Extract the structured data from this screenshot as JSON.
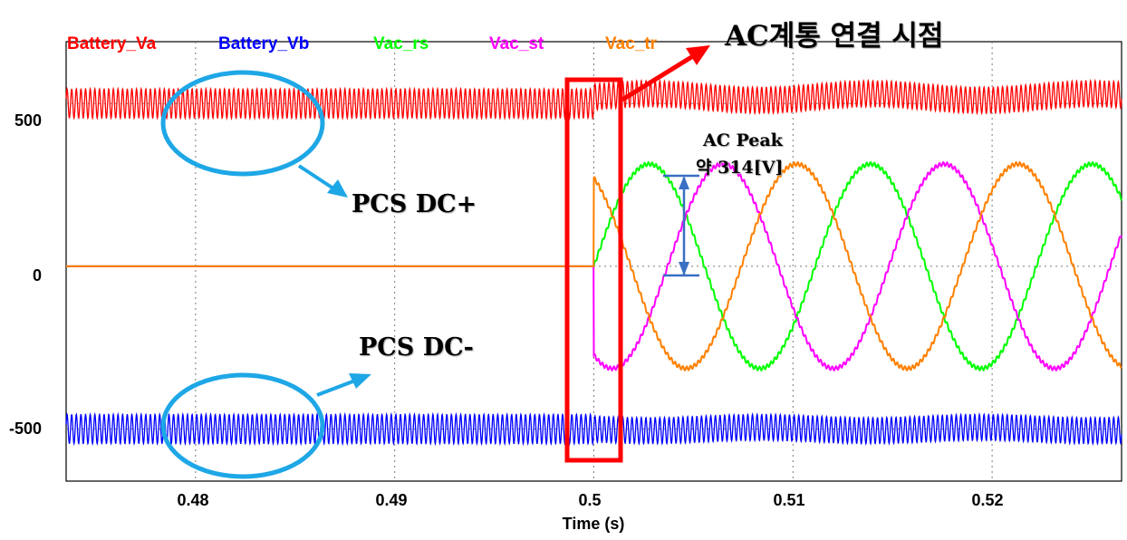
{
  "chart_data": {
    "type": "line",
    "xlabel": "Time (s)",
    "xlim": [
      0.4735,
      0.5265
    ],
    "ylim": [
      -660,
      690
    ],
    "xticks": [
      0.48,
      0.49,
      0.5,
      0.51,
      0.52
    ],
    "xtick_labels": [
      "0.48",
      "0.49",
      "0.5",
      "0.51",
      "0.52"
    ],
    "yticks": [
      500,
      0,
      -500
    ],
    "ytick_labels": [
      "500",
      "0",
      "-500"
    ],
    "grid": true,
    "legend_position": "top",
    "connect_time": 0.5,
    "ac_frequency_hz": 90,
    "ac_peak": 314,
    "series": [
      {
        "name": "Battery_Va",
        "color": "#ff0000",
        "level_before": 500,
        "ripple_before": 45,
        "level_after": 520,
        "ripple_after": 40
      },
      {
        "name": "Battery_Vb",
        "color": "#0000ff",
        "level_before": -500,
        "ripple_before": 45,
        "level_after": -500,
        "ripple_after": 40
      },
      {
        "name": "Vac_rs",
        "color": "#00ff00",
        "amplitude": 314,
        "phase_deg": 0
      },
      {
        "name": "Vac_st",
        "color": "#ff00ff",
        "amplitude": 314,
        "phase_deg": -120
      },
      {
        "name": "Vac_tr",
        "color": "#ff8000",
        "amplitude": 314,
        "phase_deg": 120
      }
    ]
  },
  "annotations": {
    "title": "AC계통 연결 시점",
    "dc_plus": "PCS DC+",
    "dc_minus": "PCS DC-",
    "peak_line1": "AC Peak",
    "peak_line2": "약 314[V]"
  },
  "colors": {
    "highlight_box": "#ff0000",
    "ellipse": "#1ea7e6",
    "arrow_blue": "#1ea7e6",
    "peak_marker": "#3a6fc4"
  }
}
